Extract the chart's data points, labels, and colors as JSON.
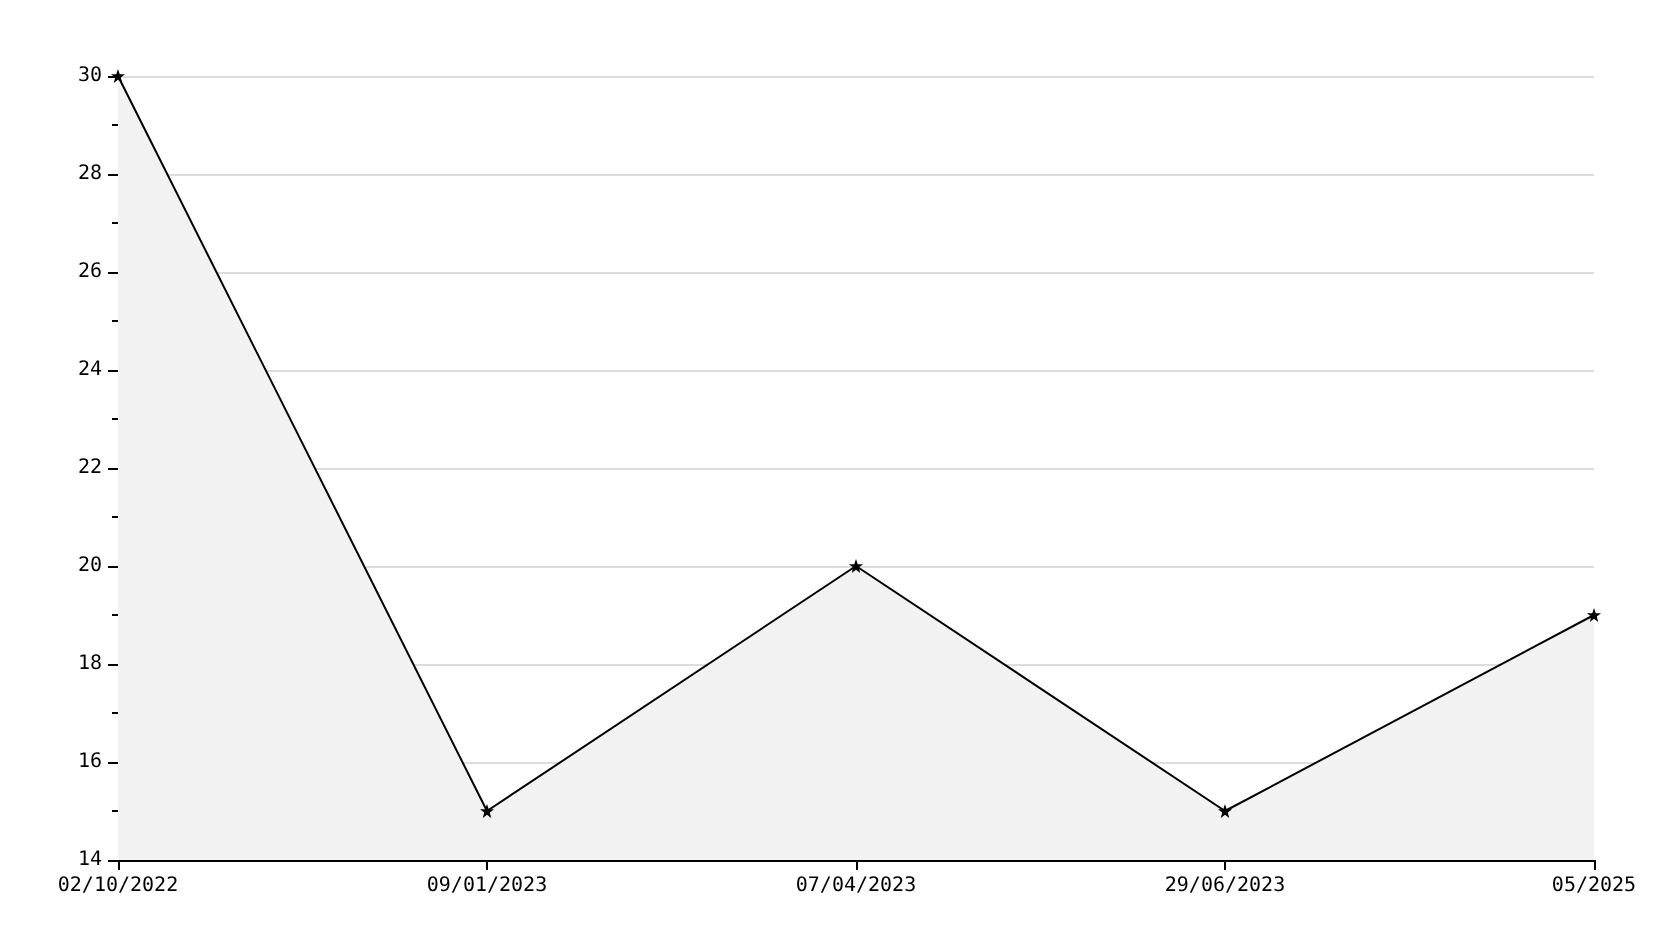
{
  "chart_data": {
    "type": "area",
    "categories": [
      "02/10/2022",
      "09/01/2023",
      "07/04/2023",
      "29/06/2023",
      "05/2025"
    ],
    "series": [
      {
        "color": "#000000",
        "values": [
          30,
          15,
          20,
          15,
          19
        ]
      }
    ],
    "ylim": [
      14,
      30
    ],
    "yticks": [
      14,
      16,
      18,
      20,
      22,
      24,
      26,
      28,
      30
    ],
    "grid": "y",
    "marker": "star",
    "line_style": "solid"
  }
}
